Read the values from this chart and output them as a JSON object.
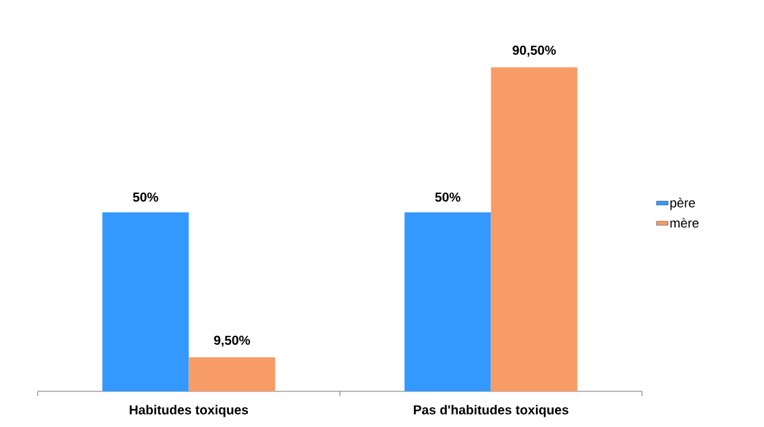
{
  "chart_data": {
    "type": "bar",
    "categories": [
      "Habitudes toxiques",
      "Pas d'habitudes toxiques"
    ],
    "series": [
      {
        "name": "père",
        "color": "#3399ff",
        "values": [
          50,
          50
        ],
        "value_labels": [
          "50%",
          "50%"
        ]
      },
      {
        "name": "mère",
        "color": "#f79b67",
        "values": [
          9.5,
          90.5
        ],
        "value_labels": [
          "9,50%",
          "90,50%"
        ]
      }
    ],
    "legend": "right"
  }
}
